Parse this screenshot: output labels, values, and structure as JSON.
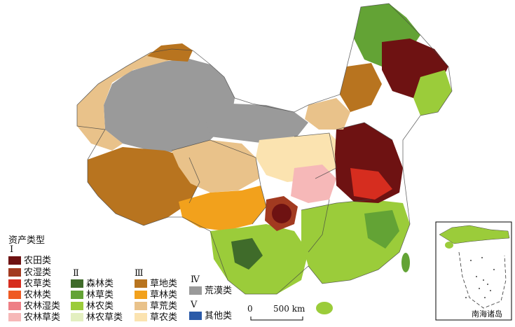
{
  "legend": {
    "title": "资产类型",
    "groups": [
      {
        "roman": "Ⅰ",
        "items": [
          {
            "label": "农田类",
            "color": "#6e1212"
          },
          {
            "label": "农湿类",
            "color": "#a23a20"
          },
          {
            "label": "农草类",
            "color": "#d62d1f"
          },
          {
            "label": "农林类",
            "color": "#ef5a23"
          },
          {
            "label": "农林湿类",
            "color": "#ee7f86"
          },
          {
            "label": "农林草类",
            "color": "#f6b8b8"
          }
        ]
      },
      {
        "roman": "Ⅱ",
        "items": [
          {
            "label": "森林类",
            "color": "#3f6b2a"
          },
          {
            "label": "林草类",
            "color": "#63a335"
          },
          {
            "label": "林农类",
            "color": "#9bcc3a"
          },
          {
            "label": "林农草类",
            "color": "#e3efc0"
          }
        ]
      },
      {
        "roman": "Ⅲ",
        "items": [
          {
            "label": "草地类",
            "color": "#b8741f"
          },
          {
            "label": "草林类",
            "color": "#f2a11c"
          },
          {
            "label": "草荒类",
            "color": "#e9c28a"
          },
          {
            "label": "草农类",
            "color": "#fbe3b0"
          }
        ]
      },
      {
        "roman": "Ⅳ",
        "items": [
          {
            "label": "荒漠类",
            "color": "#9a9a9a"
          }
        ]
      },
      {
        "roman": "Ⅴ",
        "items": [
          {
            "label": "其他类",
            "color": "#2a5aa8"
          }
        ]
      }
    ]
  },
  "scale_bar": {
    "zero": "0",
    "label": "500 km"
  },
  "inset": {
    "label": "南海诸岛"
  }
}
